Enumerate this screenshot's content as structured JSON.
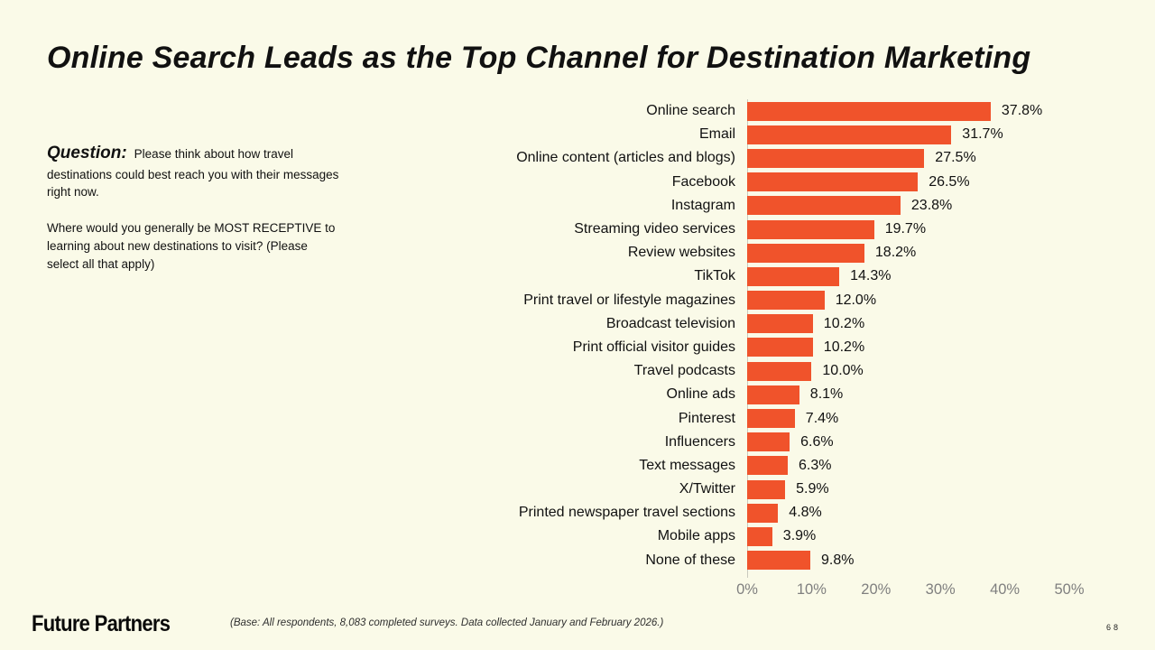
{
  "slide": {
    "title": "Online Search Leads as the Top Channel for Destination Marketing",
    "question": {
      "label": "Question:",
      "paragraph1": "Please think about how travel destinations could best reach you with their messages right now.",
      "paragraph2": "Where would you generally be MOST RECEPTIVE to learning about new destinations to visit? (Please select all that apply)"
    },
    "footer": {
      "logo_text": "Future Partners",
      "base_note": "(Base: All respondents, 8,083 completed surveys. Data collected January and February 2026.)",
      "page_number": "68"
    }
  },
  "colors": {
    "background": "#FAFAE8",
    "bar": "#F0532B",
    "ink": "#111111",
    "axis_label": "#7F7F7F",
    "axis_line": "#C9C9BE"
  },
  "chart_data": {
    "type": "bar",
    "orientation": "horizontal",
    "title": "Online Search Leads as the Top Channel for Destination Marketing",
    "categories": [
      "Online search",
      "Email",
      "Online content (articles and blogs)",
      "Facebook",
      "Instagram",
      "Streaming video services",
      "Review websites",
      "TikTok",
      "Print travel or lifestyle magazines",
      "Broadcast television",
      "Print official visitor guides",
      "Travel podcasts",
      "Online ads",
      "Pinterest",
      "Influencers",
      "Text messages",
      "X/Twitter",
      "Printed newspaper travel sections",
      "Mobile apps",
      "None of these"
    ],
    "values": [
      37.8,
      31.7,
      27.5,
      26.5,
      23.8,
      19.7,
      18.2,
      14.3,
      12.0,
      10.2,
      10.2,
      10.0,
      8.1,
      7.4,
      6.6,
      6.3,
      5.9,
      4.8,
      3.9,
      9.8
    ],
    "value_label_format": "percent_one_decimal",
    "x_ticks": [
      "0%",
      "10%",
      "20%",
      "30%",
      "40%",
      "50%"
    ],
    "xlim": [
      0,
      50
    ],
    "grid": false,
    "data_labels": true,
    "legend": false
  }
}
